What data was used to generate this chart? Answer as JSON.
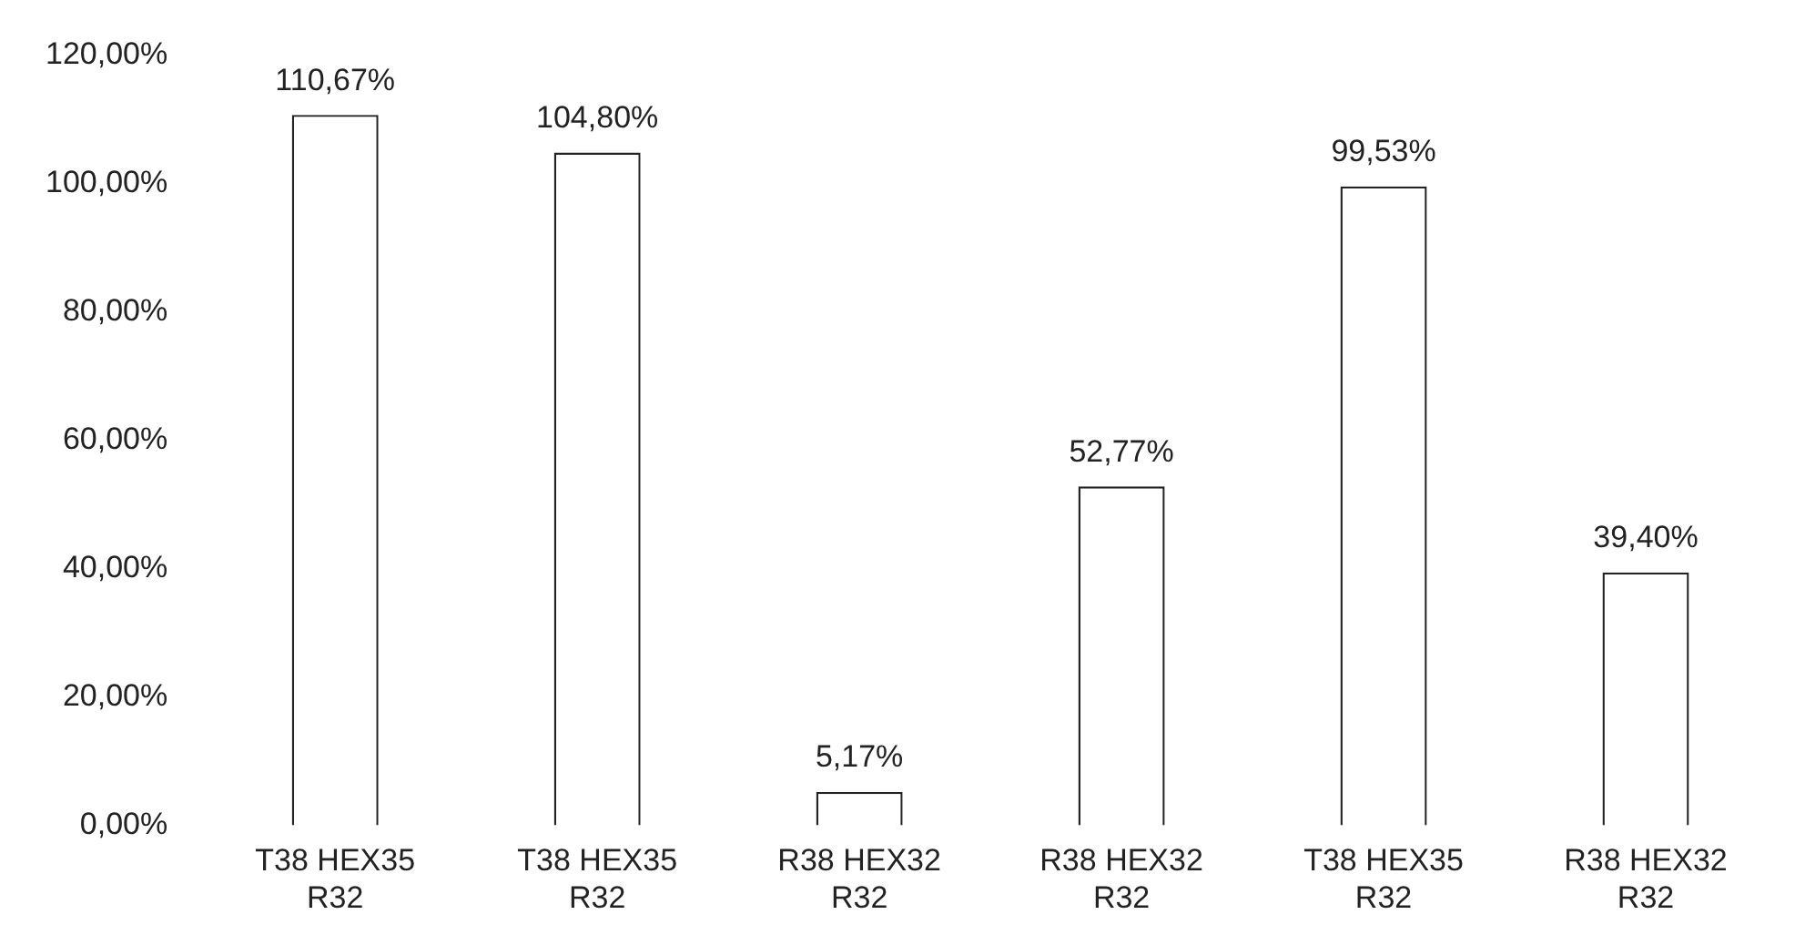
{
  "chart_data": {
    "type": "bar",
    "categories": [
      "T38 HEX35 R32",
      "T38 HEX35 R32",
      "R38 HEX32 R32",
      "R38 HEX32 R32",
      "T38 HEX35 R32",
      "R38 HEX32 R32"
    ],
    "values": [
      110.67,
      104.8,
      5.17,
      52.77,
      99.53,
      39.4
    ],
    "value_labels": [
      "110,67%",
      "104,80%",
      "5,17%",
      "52,77%",
      "99,53%",
      "39,40%"
    ],
    "color": "#ffffff",
    "ylim": [
      0,
      120
    ],
    "yticks": [
      {
        "value": 0,
        "label": "0,00%"
      },
      {
        "value": 20,
        "label": "20,00%"
      },
      {
        "value": 40,
        "label": "40,00%"
      },
      {
        "value": 60,
        "label": "60,00%"
      },
      {
        "value": 80,
        "label": "80,00%"
      },
      {
        "value": 100,
        "label": "100,00%"
      },
      {
        "value": 120,
        "label": "120,00%"
      }
    ],
    "grid": false,
    "legend": false
  }
}
